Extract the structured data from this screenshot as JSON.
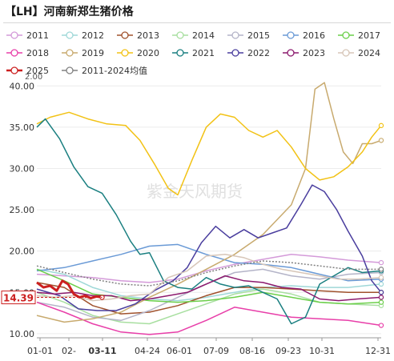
{
  "title": "【LH】河南新郑生猪价格",
  "watermark": "紫金天风期货",
  "chart_data": {
    "type": "line",
    "title": "【LH】河南新郑生猪价格",
    "ylim": [
      9.5,
      41
    ],
    "yticks": [
      "10.00",
      "15.00",
      "20.00",
      "25.00",
      "30.00",
      "35.00",
      "40.00"
    ],
    "y_top_label": "2.00",
    "xtick_labels": [
      "01-01",
      "02-",
      "03-11",
      "04-24",
      "06-01",
      "07-09",
      "08-16",
      "09-23",
      "10-31",
      "12-31"
    ],
    "highlight_x_label": "03-11",
    "current_value_label": "14.39",
    "grid": true,
    "legend_position": "top",
    "series": [
      {
        "name": "2011",
        "color": "#d49ad9",
        "style": "solid",
        "points": [
          [
            1,
            17.2
          ],
          [
            30,
            17.0
          ],
          [
            60,
            16.8
          ],
          [
            90,
            16.4
          ],
          [
            120,
            16.2
          ],
          [
            150,
            16.6
          ],
          [
            180,
            17.6
          ],
          [
            210,
            18.4
          ],
          [
            240,
            19.0
          ],
          [
            270,
            19.6
          ],
          [
            300,
            19.3
          ],
          [
            330,
            18.9
          ],
          [
            365,
            18.6
          ]
        ]
      },
      {
        "name": "2012",
        "color": "#9fd8d8",
        "style": "solid",
        "points": [
          [
            1,
            17.8
          ],
          [
            30,
            17.2
          ],
          [
            60,
            15.6
          ],
          [
            90,
            14.6
          ],
          [
            120,
            14.2
          ],
          [
            150,
            14.0
          ],
          [
            180,
            14.4
          ],
          [
            210,
            15.0
          ],
          [
            240,
            15.6
          ],
          [
            270,
            15.8
          ],
          [
            300,
            15.6
          ],
          [
            330,
            15.6
          ],
          [
            365,
            16.0
          ]
        ]
      },
      {
        "name": "2013",
        "color": "#a0522d",
        "style": "solid",
        "points": [
          [
            1,
            16.2
          ],
          [
            30,
            15.6
          ],
          [
            60,
            13.4
          ],
          [
            90,
            12.4
          ],
          [
            120,
            12.6
          ],
          [
            150,
            13.4
          ],
          [
            180,
            14.6
          ],
          [
            210,
            15.6
          ],
          [
            240,
            15.6
          ],
          [
            270,
            15.4
          ],
          [
            300,
            15.2
          ],
          [
            330,
            15.0
          ],
          [
            365,
            15.0
          ]
        ]
      },
      {
        "name": "2014",
        "color": "#a8dfa0",
        "style": "solid",
        "points": [
          [
            1,
            15.0
          ],
          [
            30,
            13.8
          ],
          [
            60,
            12.2
          ],
          [
            90,
            11.4
          ],
          [
            120,
            11.2
          ],
          [
            150,
            12.4
          ],
          [
            180,
            13.6
          ],
          [
            210,
            14.8
          ],
          [
            240,
            15.4
          ],
          [
            270,
            14.8
          ],
          [
            300,
            13.8
          ],
          [
            330,
            13.6
          ],
          [
            365,
            13.4
          ]
        ]
      },
      {
        "name": "2015",
        "color": "#b4b4c8",
        "style": "solid",
        "points": [
          [
            1,
            13.8
          ],
          [
            30,
            13.2
          ],
          [
            60,
            12.0
          ],
          [
            90,
            11.6
          ],
          [
            120,
            12.8
          ],
          [
            150,
            14.4
          ],
          [
            180,
            16.0
          ],
          [
            210,
            17.4
          ],
          [
            240,
            17.8
          ],
          [
            270,
            17.0
          ],
          [
            300,
            16.6
          ],
          [
            330,
            17.2
          ],
          [
            365,
            17.4
          ]
        ]
      },
      {
        "name": "2016",
        "color": "#6a9ad6",
        "style": "solid",
        "points": [
          [
            1,
            17.6
          ],
          [
            30,
            18.0
          ],
          [
            60,
            18.8
          ],
          [
            90,
            19.6
          ],
          [
            120,
            20.6
          ],
          [
            150,
            20.8
          ],
          [
            180,
            19.6
          ],
          [
            210,
            18.6
          ],
          [
            240,
            18.4
          ],
          [
            270,
            18.0
          ],
          [
            300,
            17.2
          ],
          [
            330,
            16.4
          ],
          [
            365,
            16.6
          ]
        ]
      },
      {
        "name": "2017",
        "color": "#6ccf4a",
        "style": "solid",
        "points": [
          [
            1,
            17.8
          ],
          [
            30,
            16.4
          ],
          [
            60,
            14.8
          ],
          [
            90,
            14.4
          ],
          [
            120,
            14.0
          ],
          [
            150,
            13.8
          ],
          [
            180,
            14.0
          ],
          [
            210,
            14.4
          ],
          [
            240,
            15.0
          ],
          [
            270,
            14.4
          ],
          [
            300,
            13.8
          ],
          [
            330,
            13.6
          ],
          [
            365,
            13.8
          ]
        ]
      },
      {
        "name": "2018",
        "color": "#e83fa9",
        "style": "solid",
        "points": [
          [
            1,
            13.8
          ],
          [
            30,
            12.6
          ],
          [
            60,
            11.2
          ],
          [
            90,
            10.2
          ],
          [
            120,
            9.9
          ],
          [
            150,
            10.2
          ],
          [
            180,
            11.6
          ],
          [
            210,
            13.2
          ],
          [
            240,
            12.6
          ],
          [
            270,
            12.0
          ],
          [
            300,
            11.8
          ],
          [
            330,
            11.6
          ],
          [
            365,
            11.0
          ]
        ]
      },
      {
        "name": "2019",
        "color": "#c8aa6e",
        "style": "solid",
        "points": [
          [
            1,
            12.2
          ],
          [
            30,
            11.4
          ],
          [
            60,
            11.8
          ],
          [
            90,
            12.6
          ],
          [
            120,
            14.4
          ],
          [
            150,
            16.0
          ],
          [
            180,
            17.8
          ],
          [
            210,
            19.6
          ],
          [
            240,
            22.0
          ],
          [
            270,
            25.6
          ],
          [
            285,
            30.0
          ],
          [
            295,
            39.6
          ],
          [
            305,
            40.4
          ],
          [
            315,
            36.0
          ],
          [
            325,
            32.0
          ],
          [
            335,
            30.6
          ],
          [
            345,
            33.0
          ],
          [
            355,
            33.0
          ],
          [
            365,
            33.4
          ]
        ]
      },
      {
        "name": "2020",
        "color": "#f2c215",
        "style": "solid",
        "points": [
          [
            1,
            35.4
          ],
          [
            15,
            36.2
          ],
          [
            35,
            36.8
          ],
          [
            55,
            36.0
          ],
          [
            75,
            35.4
          ],
          [
            95,
            35.2
          ],
          [
            110,
            33.4
          ],
          [
            125,
            30.6
          ],
          [
            140,
            27.6
          ],
          [
            150,
            26.8
          ],
          [
            165,
            31.0
          ],
          [
            180,
            35.0
          ],
          [
            195,
            36.6
          ],
          [
            210,
            36.2
          ],
          [
            225,
            34.6
          ],
          [
            240,
            33.8
          ],
          [
            255,
            34.6
          ],
          [
            270,
            32.6
          ],
          [
            285,
            30.0
          ],
          [
            300,
            28.6
          ],
          [
            315,
            29.0
          ],
          [
            330,
            30.2
          ],
          [
            345,
            32.0
          ],
          [
            355,
            33.8
          ],
          [
            365,
            35.2
          ]
        ]
      },
      {
        "name": "2021",
        "color": "#1a7f80",
        "style": "solid",
        "points": [
          [
            1,
            35.0
          ],
          [
            10,
            36.0
          ],
          [
            25,
            33.6
          ],
          [
            40,
            30.2
          ],
          [
            55,
            27.8
          ],
          [
            70,
            27.0
          ],
          [
            85,
            24.4
          ],
          [
            100,
            21.2
          ],
          [
            110,
            19.6
          ],
          [
            120,
            19.8
          ],
          [
            135,
            16.4
          ],
          [
            150,
            15.6
          ],
          [
            165,
            15.4
          ],
          [
            180,
            16.8
          ],
          [
            195,
            16.0
          ],
          [
            210,
            15.6
          ],
          [
            225,
            15.8
          ],
          [
            240,
            15.0
          ],
          [
            255,
            14.2
          ],
          [
            270,
            11.2
          ],
          [
            285,
            12.0
          ],
          [
            300,
            16.0
          ],
          [
            315,
            17.0
          ],
          [
            330,
            18.0
          ],
          [
            345,
            17.4
          ],
          [
            365,
            17.6
          ]
        ]
      },
      {
        "name": "2022",
        "color": "#4a3e9e",
        "style": "solid",
        "points": [
          [
            1,
            15.4
          ],
          [
            25,
            14.6
          ],
          [
            45,
            13.0
          ],
          [
            65,
            12.8
          ],
          [
            85,
            12.8
          ],
          [
            105,
            13.6
          ],
          [
            125,
            15.2
          ],
          [
            145,
            16.4
          ],
          [
            160,
            18.0
          ],
          [
            175,
            21.0
          ],
          [
            190,
            23.0
          ],
          [
            205,
            21.6
          ],
          [
            220,
            22.6
          ],
          [
            235,
            21.6
          ],
          [
            250,
            22.2
          ],
          [
            265,
            22.8
          ],
          [
            280,
            25.6
          ],
          [
            292,
            28.0
          ],
          [
            305,
            27.2
          ],
          [
            318,
            25.0
          ],
          [
            330,
            22.4
          ],
          [
            345,
            19.4
          ],
          [
            355,
            16.4
          ],
          [
            365,
            15.0
          ]
        ]
      },
      {
        "name": "2023",
        "color": "#8c1a6e",
        "style": "solid",
        "points": [
          [
            1,
            15.0
          ],
          [
            20,
            14.8
          ],
          [
            40,
            15.0
          ],
          [
            60,
            14.6
          ],
          [
            80,
            14.6
          ],
          [
            100,
            14.0
          ],
          [
            120,
            14.2
          ],
          [
            140,
            14.6
          ],
          [
            160,
            15.0
          ],
          [
            180,
            16.0
          ],
          [
            200,
            17.0
          ],
          [
            220,
            16.4
          ],
          [
            240,
            16.2
          ],
          [
            260,
            15.6
          ],
          [
            280,
            15.4
          ],
          [
            300,
            14.2
          ],
          [
            320,
            14.0
          ],
          [
            340,
            14.2
          ],
          [
            365,
            14.4
          ]
        ]
      },
      {
        "name": "2024",
        "color": "#d7c6b8",
        "style": "solid",
        "points": [
          [
            1,
            14.6
          ],
          [
            20,
            14.4
          ],
          [
            40,
            14.6
          ],
          [
            60,
            14.0
          ],
          [
            80,
            14.2
          ],
          [
            100,
            14.6
          ],
          [
            120,
            14.8
          ],
          [
            140,
            16.8
          ],
          [
            160,
            17.6
          ],
          [
            180,
            19.4
          ],
          [
            200,
            19.6
          ],
          [
            220,
            19.2
          ],
          [
            240,
            18.4
          ],
          [
            260,
            17.8
          ],
          [
            280,
            17.4
          ],
          [
            300,
            17.0
          ],
          [
            320,
            16.6
          ],
          [
            340,
            16.6
          ],
          [
            365,
            16.8
          ]
        ]
      },
      {
        "name": "2025",
        "color": "#cc2020",
        "style": "bold",
        "points": [
          [
            1,
            16.2
          ],
          [
            8,
            15.6
          ],
          [
            15,
            15.8
          ],
          [
            22,
            15.2
          ],
          [
            28,
            16.4
          ],
          [
            34,
            16.0
          ],
          [
            40,
            14.8
          ],
          [
            46,
            14.4
          ],
          [
            52,
            14.6
          ],
          [
            58,
            14.3
          ],
          [
            64,
            14.5
          ],
          [
            70,
            14.39
          ]
        ]
      },
      {
        "name": "2011-2024均值",
        "color": "#808080",
        "style": "dotted",
        "points": [
          [
            1,
            18.2
          ],
          [
            30,
            17.4
          ],
          [
            60,
            16.6
          ],
          [
            90,
            16.0
          ],
          [
            120,
            15.8
          ],
          [
            150,
            16.4
          ],
          [
            180,
            17.4
          ],
          [
            210,
            18.2
          ],
          [
            240,
            18.8
          ],
          [
            270,
            18.6
          ],
          [
            300,
            18.2
          ],
          [
            330,
            17.8
          ],
          [
            365,
            17.8
          ]
        ]
      }
    ]
  }
}
